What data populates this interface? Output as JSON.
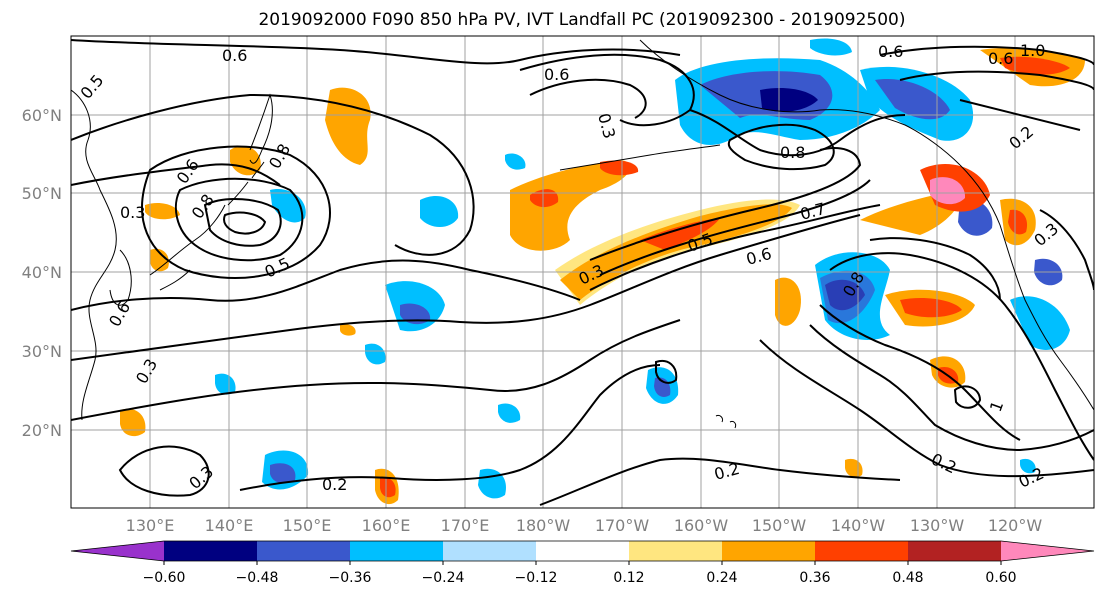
{
  "title": "2019092000 F090 850 hPa PV, IVT Landfall PC (2019092300 - 2019092500)",
  "lat_ticks": [
    "60°N",
    "50°N",
    "40°N",
    "30°N",
    "20°N"
  ],
  "lon_ticks": [
    "130°E",
    "140°E",
    "150°E",
    "160°E",
    "170°E",
    "180°W",
    "170°W",
    "160°W",
    "150°W",
    "140°W",
    "130°W",
    "120°W"
  ],
  "contour_labels": [
    "0.6",
    "0.5",
    "0.6",
    "0.3",
    "0.8",
    "0.6",
    "1.0",
    "0.6",
    "0.8",
    "0.2",
    "0.5",
    "0.7",
    "0.6",
    "0.3",
    "0.5",
    "0.3",
    "0.8",
    "0.8",
    "0.6",
    "0.3",
    "0.6",
    "0.3",
    "0.2",
    "0.2",
    "0.2",
    "0.2",
    "0.3",
    "1"
  ],
  "colorbar": {
    "colors": [
      "#9932cc",
      "#000080",
      "#3a58cc",
      "#00bfff",
      "#b0e0ff",
      "#ffffff",
      "#ffe680",
      "#ffa500",
      "#ff4000",
      "#b22222",
      "#ff88bb"
    ],
    "labels": [
      "−0.60",
      "−0.48",
      "−0.36",
      "−0.24",
      "−0.12",
      "0.12",
      "0.24",
      "0.36",
      "0.48",
      "0.60"
    ]
  },
  "palette": {
    "grid": "#a0a0a0",
    "contour": "#000000",
    "coast": "#000000"
  }
}
